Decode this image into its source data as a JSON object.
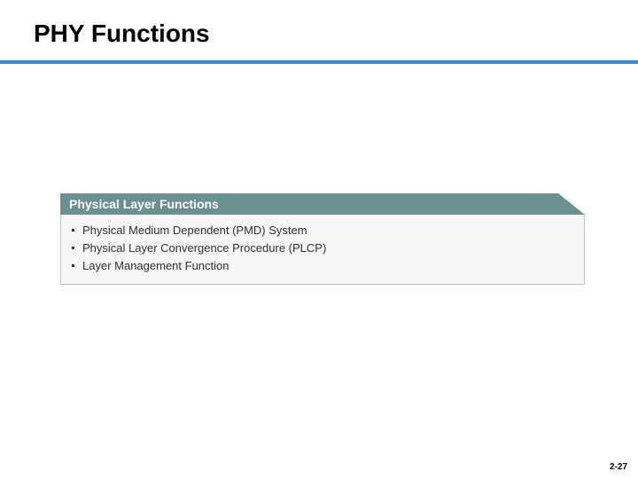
{
  "slide": {
    "title": "PHY Functions",
    "title_color": "#000000",
    "title_fontsize": 28,
    "underline_color": "#2d8fd6",
    "background_color": "#ffffff"
  },
  "panel": {
    "header_text": "Physical Layer Functions",
    "header_bg": "#6a918f",
    "header_text_color": "#ffffff",
    "body_bg": "#f5f7f6",
    "body_border": "#b9c3c2",
    "items": [
      "Physical Medium Dependent (PMD) System",
      "Physical Layer Convergence Procedure (PLCP)",
      "Layer Management Function"
    ],
    "item_color": "#303030",
    "item_fontsize": 13
  },
  "page_number": "2-27"
}
